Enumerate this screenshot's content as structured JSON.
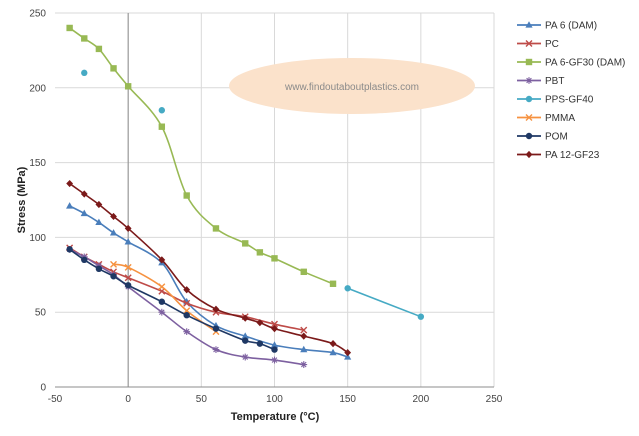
{
  "chart_data": {
    "type": "line",
    "title": "",
    "xlabel": "Temperature (°C)",
    "ylabel": "Stress (MPa)",
    "xlim": [
      -50,
      250
    ],
    "ylim": [
      0,
      250
    ],
    "xticks": [
      -50,
      0,
      50,
      100,
      150,
      200,
      250
    ],
    "yticks": [
      0,
      50,
      100,
      150,
      200,
      250
    ],
    "xtick_labels": [
      "-50",
      "0",
      "50",
      "100",
      "150",
      "200",
      "250"
    ],
    "ytick_labels": [
      "0",
      "50",
      "100",
      "150",
      "200",
      "250"
    ],
    "grid": true,
    "legend_position": "right",
    "watermark": "www.findoutaboutplastics.com",
    "series": [
      {
        "name": "PA 6 (DAM)",
        "color": "#4a7ebb",
        "marker": "triangle",
        "x": [
          -40,
          -30,
          -20,
          -10,
          0,
          23,
          40,
          60,
          80,
          100,
          120,
          140,
          150
        ],
        "y": [
          121,
          116,
          110,
          103,
          97,
          83,
          57,
          41,
          34,
          28,
          25,
          23,
          20
        ]
      },
      {
        "name": "PC",
        "color": "#be4b48",
        "marker": "x",
        "x": [
          -40,
          -30,
          -20,
          -10,
          0,
          23,
          40,
          60,
          80,
          100,
          120
        ],
        "y": [
          93,
          87,
          82,
          77,
          73,
          64,
          56,
          50,
          47,
          42,
          38
        ]
      },
      {
        "name": "PA 6-GF30 (DAM)",
        "color": "#98b954",
        "marker": "square",
        "x": [
          -40,
          -30,
          -20,
          -10,
          0,
          23,
          40,
          60,
          80,
          90,
          100,
          120,
          140
        ],
        "y": [
          240,
          233,
          226,
          213,
          201,
          174,
          128,
          106,
          96,
          90,
          86,
          77,
          69
        ]
      },
      {
        "name": "PBT",
        "color": "#7d60a0",
        "marker": "star",
        "x": [
          -40,
          -30,
          -20,
          -10,
          0,
          23,
          40,
          60,
          80,
          100,
          120
        ],
        "y": [
          92,
          87,
          81,
          75,
          67,
          50,
          37,
          25,
          20,
          18,
          15
        ]
      },
      {
        "name": "PPS-GF40",
        "color": "#46aac4",
        "marker": "circle",
        "x": [
          -30,
          23,
          150,
          200
        ],
        "y": [
          210,
          185,
          66,
          47
        ],
        "segments": [
          [
            2,
            3
          ]
        ]
      },
      {
        "name": "PMMA",
        "color": "#f69240",
        "marker": "x",
        "x": [
          -10,
          0,
          23,
          40,
          60
        ],
        "y": [
          82,
          80,
          67,
          51,
          37
        ]
      },
      {
        "name": "POM",
        "color": "#1f3864",
        "marker": "circle",
        "x": [
          -40,
          -30,
          -20,
          -10,
          0,
          23,
          40,
          60,
          80,
          90,
          100
        ],
        "y": [
          92,
          85,
          79,
          74,
          68,
          57,
          48,
          39,
          31,
          29,
          25
        ]
      },
      {
        "name": "PA 12-GF23",
        "color": "#7b1a1a",
        "marker": "diamond",
        "x": [
          -40,
          -30,
          -20,
          -10,
          0,
          23,
          40,
          60,
          80,
          90,
          100,
          120,
          140,
          150
        ],
        "y": [
          136,
          129,
          122,
          114,
          106,
          85,
          65,
          52,
          46,
          43,
          39,
          34,
          29,
          23
        ]
      }
    ]
  }
}
